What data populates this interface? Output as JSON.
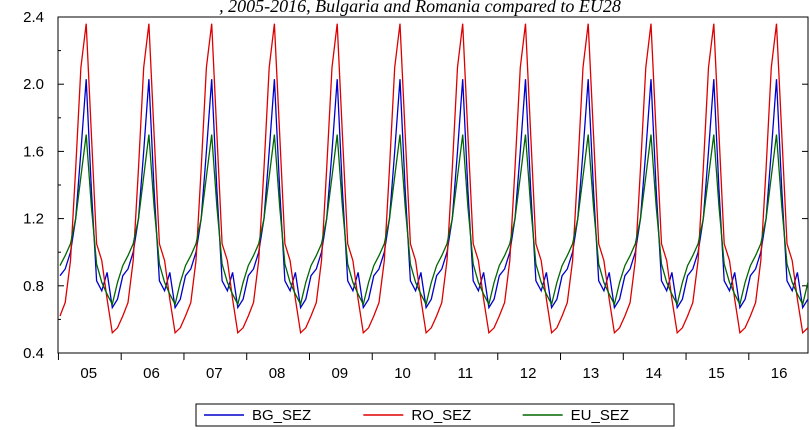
{
  "chart_data": {
    "type": "line",
    "title": ", 2005-2016, Bulgaria and Romania compared to EU28",
    "xlabel": "",
    "ylabel": "",
    "ylim": [
      0.4,
      2.4
    ],
    "yticks": [
      "0.4",
      "0.8",
      "1.2",
      "1.6",
      "2.0",
      "2.4"
    ],
    "x_start": "2005-01",
    "x_end": "2016-12",
    "xtick_labels": [
      "05",
      "06",
      "07",
      "08",
      "09",
      "10",
      "11",
      "12",
      "13",
      "14",
      "15",
      "16"
    ],
    "grid": false,
    "legend_position": "bottom",
    "monthly_pattern_note": "",
    "series": [
      {
        "name": "BG_SEZ",
        "color": "#0000cc",
        "seasonal_factors_jan_to_dec": [
          0.86,
          0.9,
          1.0,
          1.2,
          1.6,
          2.03,
          1.37,
          0.83,
          0.77,
          0.88,
          0.67,
          0.72
        ],
        "years": 12
      },
      {
        "name": "RO_SEZ",
        "color": "#dd0000",
        "seasonal_factors_jan_to_dec": [
          0.62,
          0.7,
          0.95,
          1.5,
          2.1,
          2.36,
          1.7,
          1.05,
          0.95,
          0.72,
          0.52,
          0.55
        ],
        "years": 12
      },
      {
        "name": "EU_SEZ",
        "color": "#006600",
        "seasonal_factors_jan_to_dec": [
          0.92,
          0.98,
          1.05,
          1.2,
          1.45,
          1.7,
          1.27,
          0.93,
          0.82,
          0.75,
          0.69,
          0.82
        ],
        "years": 12
      }
    ]
  }
}
